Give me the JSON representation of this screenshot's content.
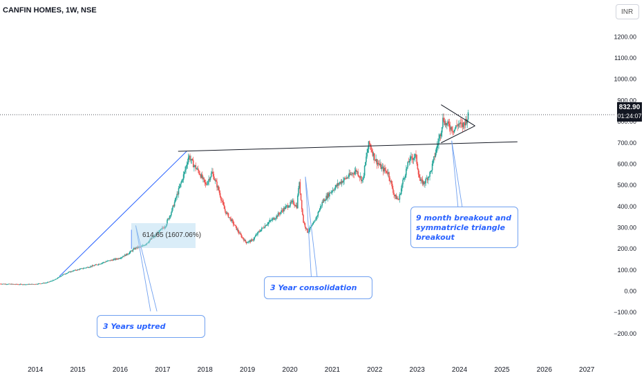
{
  "header": {
    "symbol": "CANFIN HOMES, 1W, NSE",
    "currency_button": "INR"
  },
  "price_tag": {
    "price": "832.90",
    "countdown": "01:24:07"
  },
  "measure_label": "614.65 (1607.06%)",
  "annotations": {
    "uptrend": "3 Years uptred",
    "consolidation": "3 Year consolidation",
    "breakout": "9 month breakout and symmatricle triangle breakout"
  },
  "colors": {
    "up": "#26a69a",
    "down": "#ef5350",
    "note_text": "#2962ff",
    "trendline": "#2962ff"
  },
  "chart_data": {
    "type": "candlestick",
    "title": "CANFIN HOMES, 1W, NSE",
    "x_axis_labels": [
      "2014",
      "2015",
      "2016",
      "2017",
      "2018",
      "2019",
      "2020",
      "2021",
      "2022",
      "2023",
      "2024",
      "2025",
      "2026",
      "2027"
    ],
    "y_axis_labels": [
      "1200.00",
      "1100.00",
      "1000.00",
      "900.00",
      "800.00",
      "700.00",
      "600.00",
      "500.00",
      "400.00",
      "300.00",
      "200.00",
      "100.00",
      "0.00",
      "−100.00",
      "−200.00"
    ],
    "ylim": [
      -230,
      1260
    ],
    "xlim": [
      2013.1,
      2027.6
    ],
    "last_price": 832.9,
    "price_path": [
      [
        2013.1,
        35
      ],
      [
        2013.4,
        33
      ],
      [
        2013.7,
        32
      ],
      [
        2013.95,
        34
      ],
      [
        2014.2,
        40
      ],
      [
        2014.4,
        55
      ],
      [
        2014.6,
        80
      ],
      [
        2014.8,
        95
      ],
      [
        2015.0,
        105
      ],
      [
        2015.3,
        120
      ],
      [
        2015.6,
        140
      ],
      [
        2015.9,
        155
      ],
      [
        2016.1,
        175
      ],
      [
        2016.3,
        205
      ],
      [
        2016.45,
        210
      ],
      [
        2016.6,
        235
      ],
      [
        2016.8,
        270
      ],
      [
        2017.0,
        310
      ],
      [
        2017.15,
        380
      ],
      [
        2017.3,
        470
      ],
      [
        2017.45,
        560
      ],
      [
        2017.55,
        640
      ],
      [
        2017.65,
        600
      ],
      [
        2017.8,
        560
      ],
      [
        2017.95,
        500
      ],
      [
        2018.1,
        560
      ],
      [
        2018.25,
        480
      ],
      [
        2018.4,
        380
      ],
      [
        2018.6,
        320
      ],
      [
        2018.75,
        270
      ],
      [
        2018.9,
        230
      ],
      [
        2019.05,
        240
      ],
      [
        2019.2,
        280
      ],
      [
        2019.4,
        320
      ],
      [
        2019.6,
        350
      ],
      [
        2019.8,
        390
      ],
      [
        2020.0,
        420
      ],
      [
        2020.1,
        400
      ],
      [
        2020.15,
        520
      ],
      [
        2020.25,
        330
      ],
      [
        2020.35,
        280
      ],
      [
        2020.5,
        320
      ],
      [
        2020.7,
        420
      ],
      [
        2020.9,
        470
      ],
      [
        2021.1,
        510
      ],
      [
        2021.3,
        540
      ],
      [
        2021.5,
        570
      ],
      [
        2021.65,
        520
      ],
      [
        2021.75,
        650
      ],
      [
        2021.8,
        700
      ],
      [
        2021.95,
        620
      ],
      [
        2022.1,
        580
      ],
      [
        2022.25,
        560
      ],
      [
        2022.4,
        450
      ],
      [
        2022.5,
        430
      ],
      [
        2022.6,
        520
      ],
      [
        2022.75,
        620
      ],
      [
        2022.9,
        640
      ],
      [
        2023.0,
        520
      ],
      [
        2023.1,
        510
      ],
      [
        2023.25,
        560
      ],
      [
        2023.4,
        680
      ],
      [
        2023.5,
        760
      ],
      [
        2023.55,
        820
      ],
      [
        2023.6,
        790
      ],
      [
        2023.7,
        780
      ],
      [
        2023.8,
        760
      ],
      [
        2023.9,
        790
      ],
      [
        2024.0,
        780
      ],
      [
        2024.1,
        810
      ],
      [
        2024.15,
        832.9
      ]
    ],
    "lines": [
      {
        "name": "uptrend line",
        "from": [
          2014.5,
          70
        ],
        "to": [
          2017.5,
          660
        ]
      },
      {
        "name": "horizontal resistance",
        "from": [
          2017.3,
          660
        ],
        "to": [
          2025.3,
          705
        ]
      },
      {
        "name": "triangle upper",
        "from": [
          2023.5,
          880
        ],
        "to": [
          2024.3,
          780
        ]
      },
      {
        "name": "triangle lower",
        "from": [
          2023.5,
          700
        ],
        "to": [
          2024.3,
          780
        ]
      }
    ],
    "measure": {
      "from": [
        2016.2,
        290
      ],
      "to": [
        2017.6,
        200
      ],
      "change": "614.65 (1607.06%)"
    },
    "grid": false,
    "legend": "none"
  }
}
